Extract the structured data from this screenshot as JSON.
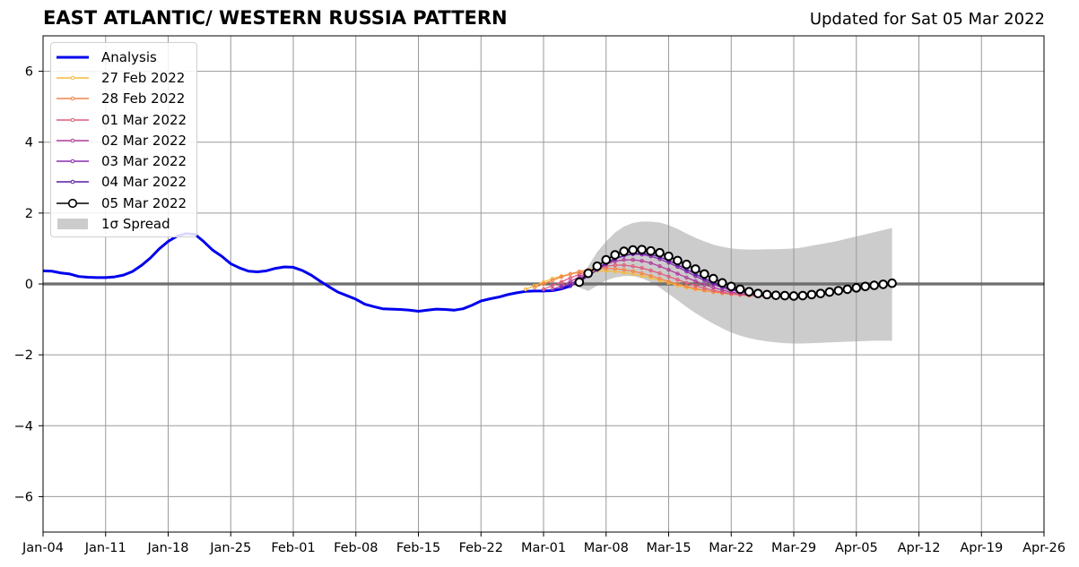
{
  "title": "EAST ATLANTIC/ WESTERN RUSSIA PATTERN",
  "updated_text": "Updated for Sat 05 Mar 2022",
  "chart_data": {
    "type": "line",
    "title": "EAST ATLANTIC/ WESTERN RUSSIA PATTERN",
    "xlabel": "",
    "ylabel": "",
    "x_unit": "date (2022)",
    "xlim": [
      "2022-01-04",
      "2022-04-26"
    ],
    "ylim": [
      -7,
      7
    ],
    "x_ticks": [
      "Jan-04",
      "Jan-11",
      "Jan-18",
      "Jan-25",
      "Feb-01",
      "Feb-08",
      "Feb-15",
      "Feb-22",
      "Mar-01",
      "Mar-08",
      "Mar-15",
      "Mar-22",
      "Mar-29",
      "Apr-05",
      "Apr-12",
      "Apr-19",
      "Apr-26"
    ],
    "y_ticks": [
      -6,
      -4,
      -2,
      0,
      2,
      4,
      6
    ],
    "y_tick_labels": [
      "−6",
      "−4",
      "−2",
      "0",
      "2",
      "4",
      "6"
    ],
    "grid": true,
    "zero_line": true,
    "legend_position": "top-left",
    "series": [
      {
        "name": "Analysis",
        "color": "#0000ee",
        "style": "line",
        "x": [
          "2022-01-04",
          "2022-01-05",
          "2022-01-06",
          "2022-01-07",
          "2022-01-08",
          "2022-01-09",
          "2022-01-10",
          "2022-01-11",
          "2022-01-12",
          "2022-01-13",
          "2022-01-14",
          "2022-01-15",
          "2022-01-16",
          "2022-01-17",
          "2022-01-18",
          "2022-01-19",
          "2022-01-20",
          "2022-01-21",
          "2022-01-22",
          "2022-01-23",
          "2022-01-24",
          "2022-01-25",
          "2022-01-26",
          "2022-01-27",
          "2022-01-28",
          "2022-01-29",
          "2022-01-30",
          "2022-01-31",
          "2022-02-01",
          "2022-02-02",
          "2022-02-03",
          "2022-02-04",
          "2022-02-05",
          "2022-02-06",
          "2022-02-07",
          "2022-02-08",
          "2022-02-09",
          "2022-02-10",
          "2022-02-11",
          "2022-02-12",
          "2022-02-13",
          "2022-02-14",
          "2022-02-15",
          "2022-02-16",
          "2022-02-17",
          "2022-02-18",
          "2022-02-19",
          "2022-02-20",
          "2022-02-21",
          "2022-02-22",
          "2022-02-23",
          "2022-02-24",
          "2022-02-25",
          "2022-02-26",
          "2022-02-27",
          "2022-02-28",
          "2022-03-01",
          "2022-03-02",
          "2022-03-03",
          "2022-03-04"
        ],
        "y": [
          0.37,
          0.36,
          0.31,
          0.28,
          0.21,
          0.19,
          0.18,
          0.18,
          0.2,
          0.25,
          0.35,
          0.52,
          0.73,
          0.99,
          1.2,
          1.35,
          1.42,
          1.4,
          1.19,
          0.95,
          0.78,
          0.57,
          0.45,
          0.36,
          0.34,
          0.37,
          0.44,
          0.48,
          0.47,
          0.38,
          0.25,
          0.08,
          -0.08,
          -0.23,
          -0.33,
          -0.43,
          -0.57,
          -0.64,
          -0.7,
          -0.71,
          -0.72,
          -0.74,
          -0.77,
          -0.74,
          -0.71,
          -0.72,
          -0.74,
          -0.7,
          -0.6,
          -0.48,
          -0.42,
          -0.37,
          -0.3,
          -0.25,
          -0.21,
          -0.2,
          -0.2,
          -0.19,
          -0.14,
          -0.06
        ]
      },
      {
        "name": "27 Feb 2022",
        "color": "#f6b93b",
        "style": "line-dots",
        "x": [
          "2022-02-27",
          "2022-02-28",
          "2022-03-01",
          "2022-03-02",
          "2022-03-03",
          "2022-03-04",
          "2022-03-05",
          "2022-03-06",
          "2022-03-07",
          "2022-03-08",
          "2022-03-09",
          "2022-03-10",
          "2022-03-11",
          "2022-03-12",
          "2022-03-13",
          "2022-03-14",
          "2022-03-15",
          "2022-03-16",
          "2022-03-17",
          "2022-03-18",
          "2022-03-19",
          "2022-03-20",
          "2022-03-21",
          "2022-03-22",
          "2022-03-23",
          "2022-03-24",
          "2022-03-25",
          "2022-03-26"
        ],
        "y": [
          -0.15,
          -0.05,
          0.05,
          0.15,
          0.22,
          0.28,
          0.32,
          0.35,
          0.37,
          0.37,
          0.35,
          0.32,
          0.28,
          0.23,
          0.17,
          0.1,
          0.03,
          -0.04,
          -0.1,
          -0.15,
          -0.19,
          -0.23,
          -0.26,
          -0.28,
          -0.3,
          -0.32,
          -0.33,
          -0.34
        ]
      },
      {
        "name": "28 Feb 2022",
        "color": "#f4844a",
        "style": "line-dots",
        "x": [
          "2022-02-28",
          "2022-03-01",
          "2022-03-02",
          "2022-03-03",
          "2022-03-04",
          "2022-03-05",
          "2022-03-06",
          "2022-03-07",
          "2022-03-08",
          "2022-03-09",
          "2022-03-10",
          "2022-03-11",
          "2022-03-12",
          "2022-03-13",
          "2022-03-14",
          "2022-03-15",
          "2022-03-16",
          "2022-03-17",
          "2022-03-18",
          "2022-03-19",
          "2022-03-20",
          "2022-03-21",
          "2022-03-22",
          "2022-03-23",
          "2022-03-24",
          "2022-03-25",
          "2022-03-26",
          "2022-03-27"
        ],
        "y": [
          -0.1,
          0.0,
          0.1,
          0.2,
          0.28,
          0.35,
          0.4,
          0.43,
          0.44,
          0.43,
          0.4,
          0.36,
          0.3,
          0.23,
          0.15,
          0.07,
          0.0,
          -0.07,
          -0.13,
          -0.18,
          -0.22,
          -0.26,
          -0.29,
          -0.31,
          -0.33,
          -0.34,
          -0.35,
          -0.36
        ]
      },
      {
        "name": "01 Mar 2022",
        "color": "#e05c7a",
        "style": "line-dots",
        "x": [
          "2022-03-01",
          "2022-03-02",
          "2022-03-03",
          "2022-03-04",
          "2022-03-05",
          "2022-03-06",
          "2022-03-07",
          "2022-03-08",
          "2022-03-09",
          "2022-03-10",
          "2022-03-11",
          "2022-03-12",
          "2022-03-13",
          "2022-03-14",
          "2022-03-15",
          "2022-03-16",
          "2022-03-17",
          "2022-03-18",
          "2022-03-19",
          "2022-03-20",
          "2022-03-21",
          "2022-03-22",
          "2022-03-23",
          "2022-03-24",
          "2022-03-25",
          "2022-03-26",
          "2022-03-27",
          "2022-03-28"
        ],
        "y": [
          -0.15,
          -0.05,
          0.06,
          0.17,
          0.27,
          0.36,
          0.44,
          0.5,
          0.53,
          0.53,
          0.5,
          0.45,
          0.38,
          0.3,
          0.21,
          0.12,
          0.03,
          -0.05,
          -0.12,
          -0.18,
          -0.23,
          -0.27,
          -0.3,
          -0.32,
          -0.34,
          -0.35,
          -0.36,
          -0.36
        ]
      },
      {
        "name": "02 Mar 2022",
        "color": "#b43c9a",
        "style": "line-dots",
        "x": [
          "2022-03-02",
          "2022-03-03",
          "2022-03-04",
          "2022-03-05",
          "2022-03-06",
          "2022-03-07",
          "2022-03-08",
          "2022-03-09",
          "2022-03-10",
          "2022-03-11",
          "2022-03-12",
          "2022-03-13",
          "2022-03-14",
          "2022-03-15",
          "2022-03-16",
          "2022-03-17",
          "2022-03-18",
          "2022-03-19",
          "2022-03-20",
          "2022-03-21",
          "2022-03-22",
          "2022-03-23",
          "2022-03-24",
          "2022-03-25",
          "2022-03-26",
          "2022-03-27",
          "2022-03-28",
          "2022-03-29"
        ],
        "y": [
          -0.15,
          -0.05,
          0.07,
          0.2,
          0.33,
          0.45,
          0.56,
          0.64,
          0.68,
          0.68,
          0.65,
          0.59,
          0.5,
          0.4,
          0.29,
          0.18,
          0.08,
          -0.02,
          -0.1,
          -0.17,
          -0.23,
          -0.27,
          -0.3,
          -0.32,
          -0.33,
          -0.34,
          -0.34,
          -0.34
        ]
      },
      {
        "name": "03 Mar 2022",
        "color": "#8a2cb0",
        "style": "line-dots",
        "x": [
          "2022-03-03",
          "2022-03-04",
          "2022-03-05",
          "2022-03-06",
          "2022-03-07",
          "2022-03-08",
          "2022-03-09",
          "2022-03-10",
          "2022-03-11",
          "2022-03-12",
          "2022-03-13",
          "2022-03-14",
          "2022-03-15",
          "2022-03-16",
          "2022-03-17",
          "2022-03-18",
          "2022-03-19",
          "2022-03-20",
          "2022-03-21",
          "2022-03-22",
          "2022-03-23",
          "2022-03-24",
          "2022-03-25",
          "2022-03-26",
          "2022-03-27",
          "2022-03-28",
          "2022-03-29",
          "2022-03-30"
        ],
        "y": [
          -0.1,
          0.0,
          0.14,
          0.3,
          0.46,
          0.6,
          0.72,
          0.8,
          0.84,
          0.83,
          0.78,
          0.7,
          0.6,
          0.48,
          0.35,
          0.22,
          0.1,
          -0.01,
          -0.1,
          -0.17,
          -0.22,
          -0.26,
          -0.28,
          -0.3,
          -0.31,
          -0.31,
          -0.31,
          -0.3
        ]
      },
      {
        "name": "04 Mar 2022",
        "color": "#5a1aa0",
        "style": "line-dots",
        "x": [
          "2022-03-04",
          "2022-03-05",
          "2022-03-06",
          "2022-03-07",
          "2022-03-08",
          "2022-03-09",
          "2022-03-10",
          "2022-03-11",
          "2022-03-12",
          "2022-03-13",
          "2022-03-14",
          "2022-03-15",
          "2022-03-16",
          "2022-03-17",
          "2022-03-18",
          "2022-03-19",
          "2022-03-20",
          "2022-03-21",
          "2022-03-22",
          "2022-03-23",
          "2022-03-24",
          "2022-03-25",
          "2022-03-26",
          "2022-03-27",
          "2022-03-28",
          "2022-03-29",
          "2022-03-30",
          "2022-03-31"
        ],
        "y": [
          -0.06,
          0.06,
          0.22,
          0.4,
          0.57,
          0.7,
          0.8,
          0.85,
          0.86,
          0.83,
          0.76,
          0.66,
          0.54,
          0.41,
          0.28,
          0.15,
          0.04,
          -0.06,
          -0.14,
          -0.2,
          -0.24,
          -0.27,
          -0.29,
          -0.3,
          -0.3,
          -0.3,
          -0.29,
          -0.28
        ]
      },
      {
        "name": "05 Mar 2022",
        "color": "#000000",
        "style": "line-open-circles",
        "x": [
          "2022-03-05",
          "2022-03-06",
          "2022-03-07",
          "2022-03-08",
          "2022-03-09",
          "2022-03-10",
          "2022-03-11",
          "2022-03-12",
          "2022-03-13",
          "2022-03-14",
          "2022-03-15",
          "2022-03-16",
          "2022-03-17",
          "2022-03-18",
          "2022-03-19",
          "2022-03-20",
          "2022-03-21",
          "2022-03-22",
          "2022-03-23",
          "2022-03-24",
          "2022-03-25",
          "2022-03-26",
          "2022-03-27",
          "2022-03-28",
          "2022-03-29",
          "2022-03-30",
          "2022-03-31",
          "2022-04-01",
          "2022-04-02",
          "2022-04-03",
          "2022-04-04",
          "2022-04-05",
          "2022-04-06",
          "2022-04-07",
          "2022-04-08",
          "2022-04-09"
        ],
        "y": [
          0.05,
          0.3,
          0.5,
          0.68,
          0.82,
          0.92,
          0.96,
          0.97,
          0.93,
          0.88,
          0.78,
          0.66,
          0.55,
          0.42,
          0.28,
          0.15,
          0.03,
          -0.07,
          -0.15,
          -0.22,
          -0.27,
          -0.3,
          -0.32,
          -0.33,
          -0.34,
          -0.33,
          -0.3,
          -0.27,
          -0.23,
          -0.19,
          -0.15,
          -0.11,
          -0.07,
          -0.04,
          -0.01,
          0.02
        ]
      }
    ],
    "spread": {
      "name": "1σ Spread",
      "color": "#cccccc",
      "x": [
        "2022-03-05",
        "2022-03-06",
        "2022-03-07",
        "2022-03-08",
        "2022-03-09",
        "2022-03-10",
        "2022-03-11",
        "2022-03-12",
        "2022-03-13",
        "2022-03-14",
        "2022-03-15",
        "2022-03-16",
        "2022-03-17",
        "2022-03-18",
        "2022-03-19",
        "2022-03-20",
        "2022-03-21",
        "2022-03-22",
        "2022-03-23",
        "2022-03-24",
        "2022-03-25",
        "2022-03-26",
        "2022-03-27",
        "2022-03-28",
        "2022-03-29",
        "2022-03-30",
        "2022-03-31",
        "2022-04-01",
        "2022-04-02",
        "2022-04-03",
        "2022-04-04",
        "2022-04-05",
        "2022-04-06",
        "2022-04-07",
        "2022-04-08",
        "2022-04-09"
      ],
      "upper": [
        0.1,
        0.5,
        0.9,
        1.2,
        1.45,
        1.62,
        1.72,
        1.76,
        1.76,
        1.73,
        1.66,
        1.55,
        1.42,
        1.3,
        1.2,
        1.11,
        1.05,
        1.0,
        0.98,
        0.97,
        0.97,
        0.98,
        0.98,
        0.99,
        1.0,
        1.03,
        1.08,
        1.12,
        1.17,
        1.22,
        1.28,
        1.34,
        1.4,
        1.46,
        1.52,
        1.58
      ],
      "lower": [
        -0.1,
        -0.2,
        -0.05,
        0.1,
        0.18,
        0.22,
        0.22,
        0.16,
        0.05,
        -0.1,
        -0.28,
        -0.46,
        -0.65,
        -0.82,
        -0.98,
        -1.12,
        -1.25,
        -1.37,
        -1.46,
        -1.53,
        -1.58,
        -1.62,
        -1.65,
        -1.67,
        -1.68,
        -1.68,
        -1.67,
        -1.66,
        -1.65,
        -1.64,
        -1.63,
        -1.62,
        -1.61,
        -1.6,
        -1.6,
        -1.6
      ]
    }
  }
}
